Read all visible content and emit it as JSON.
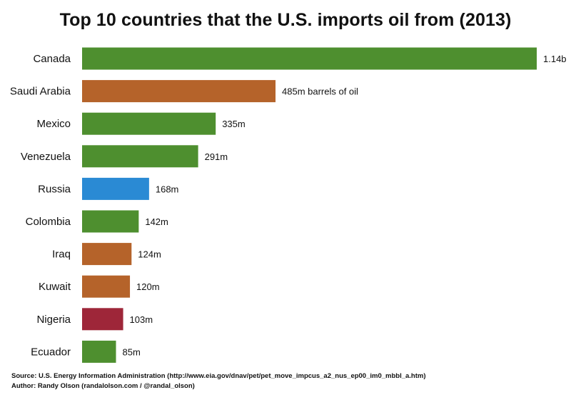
{
  "chart_data": {
    "type": "bar",
    "orientation": "horizontal",
    "title": "Top 10 countries that the U.S. imports oil from (2013)",
    "categories": [
      "Canada",
      "Saudi Arabia",
      "Mexico",
      "Venezuela",
      "Russia",
      "Colombia",
      "Iraq",
      "Kuwait",
      "Nigeria",
      "Ecuador"
    ],
    "values": [
      1140,
      485,
      335,
      291,
      168,
      142,
      124,
      120,
      103,
      85
    ],
    "value_unit": "million barrels of oil",
    "data_labels": [
      "1.14b",
      "485m barrels of oil",
      "335m",
      "291m",
      "168m",
      "142m",
      "124m",
      "120m",
      "103m",
      "85m"
    ],
    "bar_colors": [
      "#4e8f2f",
      "#b5632a",
      "#4e8f2f",
      "#4e8f2f",
      "#2a8ad4",
      "#4e8f2f",
      "#b5632a",
      "#b5632a",
      "#9e2639",
      "#4e8f2f"
    ],
    "xlim": [
      0,
      1140
    ],
    "grid": false,
    "legend": "none"
  },
  "footer": {
    "source": "Source: U.S. Energy Information Administration (http://www.eia.gov/dnav/pet/pet_move_impcus_a2_nus_ep00_im0_mbbl_a.htm)",
    "author": "Author: Randy Olson (randalolson.com / @randal_olson)"
  }
}
